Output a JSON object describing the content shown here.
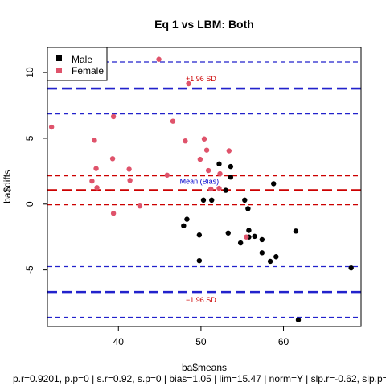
{
  "colors": {
    "male": "#000000",
    "female": "#DF536B",
    "blue": "#2222CC",
    "red": "#CC0000",
    "axis": "#000000",
    "bias_label": "#0000CD",
    "sd_label": "#CC0000"
  },
  "chart_data": {
    "type": "scatter",
    "title": "Eq 1 vs LBM: Both",
    "xlabel": "ba$means",
    "ylabel": "ba$diffs",
    "xlim": [
      31.4,
      69.4
    ],
    "ylim": [
      -9.3,
      11.9
    ],
    "xticks": [
      40,
      50,
      60
    ],
    "yticks": [
      -5,
      0,
      5,
      10
    ],
    "grid": false,
    "legend_position": "top-left",
    "legend": [
      {
        "label": "Male",
        "color_key": "male"
      },
      {
        "label": "Female",
        "color_key": "female"
      }
    ],
    "footer": "p.r=0.9201, p.p=0 | s.r=0.92, s.p=0 | bias=1.05 | lim=15.47 | norm=Y | slp.r=-0.62, slp.p=",
    "annotations": {
      "upper_sd": "+1.96 SD",
      "mean": "Mean (Bias)",
      "lower_sd": "−1.96 SD"
    },
    "hlines": [
      {
        "y": 10.8,
        "style": "dashed",
        "color_key": "blue",
        "width": "thin"
      },
      {
        "y": 8.78,
        "style": "dashed",
        "color_key": "blue",
        "width": "thick"
      },
      {
        "y": 6.85,
        "style": "dashed",
        "color_key": "blue",
        "width": "thin"
      },
      {
        "y": 2.15,
        "style": "dashed",
        "color_key": "red",
        "width": "thin"
      },
      {
        "y": 1.05,
        "style": "dashed",
        "color_key": "red",
        "width": "thick"
      },
      {
        "y": -0.05,
        "style": "dashed",
        "color_key": "red",
        "width": "thin"
      },
      {
        "y": -4.75,
        "style": "dashed",
        "color_key": "blue",
        "width": "thin"
      },
      {
        "y": -6.68,
        "style": "dashed",
        "color_key": "blue",
        "width": "thick"
      },
      {
        "y": -8.6,
        "style": "dashed",
        "color_key": "blue",
        "width": "thin"
      }
    ],
    "series": [
      {
        "name": "Male",
        "color_key": "male",
        "points": [
          [
            52.2,
            3.05
          ],
          [
            53.6,
            2.85
          ],
          [
            53.6,
            2.05
          ],
          [
            58.8,
            1.55
          ],
          [
            53.0,
            1.05
          ],
          [
            50.3,
            0.3
          ],
          [
            51.3,
            0.3
          ],
          [
            55.3,
            0.3
          ],
          [
            55.7,
            -0.35
          ],
          [
            48.3,
            -1.15
          ],
          [
            47.9,
            -1.65
          ],
          [
            55.8,
            -2.0
          ],
          [
            61.5,
            -2.05
          ],
          [
            53.3,
            -2.2
          ],
          [
            49.8,
            -2.35
          ],
          [
            55.8,
            -2.5
          ],
          [
            56.5,
            -2.45
          ],
          [
            57.4,
            -2.7
          ],
          [
            54.8,
            -2.95
          ],
          [
            57.4,
            -3.7
          ],
          [
            59.1,
            -4.0
          ],
          [
            58.4,
            -4.35
          ],
          [
            49.8,
            -4.3
          ],
          [
            68.2,
            -4.85
          ],
          [
            61.8,
            -8.8
          ]
        ]
      },
      {
        "name": "Female",
        "color_key": "female",
        "points": [
          [
            44.9,
            11.0
          ],
          [
            48.5,
            9.15
          ],
          [
            39.4,
            6.65
          ],
          [
            46.6,
            6.3
          ],
          [
            31.9,
            5.85
          ],
          [
            50.4,
            4.95
          ],
          [
            37.1,
            4.85
          ],
          [
            48.1,
            4.8
          ],
          [
            50.7,
            4.1
          ],
          [
            53.4,
            4.05
          ],
          [
            39.3,
            3.45
          ],
          [
            49.9,
            3.4
          ],
          [
            37.3,
            2.7
          ],
          [
            41.3,
            2.65
          ],
          [
            50.9,
            2.55
          ],
          [
            52.3,
            2.3
          ],
          [
            45.9,
            2.2
          ],
          [
            36.8,
            1.75
          ],
          [
            41.4,
            1.8
          ],
          [
            37.4,
            1.25
          ],
          [
            51.2,
            1.15
          ],
          [
            52.2,
            1.2
          ],
          [
            42.6,
            -0.15
          ],
          [
            39.4,
            -0.7
          ],
          [
            55.5,
            -2.5
          ]
        ]
      }
    ]
  }
}
